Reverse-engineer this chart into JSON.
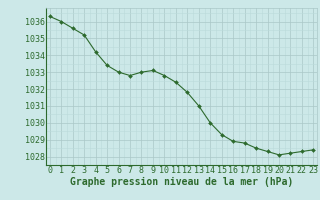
{
  "x": [
    0,
    1,
    2,
    3,
    4,
    5,
    6,
    7,
    8,
    9,
    10,
    11,
    12,
    13,
    14,
    15,
    16,
    17,
    18,
    19,
    20,
    21,
    22,
    23
  ],
  "y": [
    1036.3,
    1036.0,
    1035.6,
    1035.2,
    1034.2,
    1033.4,
    1033.0,
    1032.8,
    1033.0,
    1033.1,
    1032.8,
    1032.4,
    1031.8,
    1031.0,
    1030.0,
    1029.3,
    1028.9,
    1028.8,
    1028.5,
    1028.3,
    1028.1,
    1028.2,
    1028.3,
    1028.4
  ],
  "line_color": "#2d6a2d",
  "marker_color": "#2d6a2d",
  "bg_color": "#cce8e8",
  "grid_color_major": "#aac8c8",
  "grid_color_minor": "#bbdada",
  "xlabel": "Graphe pression niveau de la mer (hPa)",
  "xlabel_color": "#2d6a2d",
  "ylabel_ticks": [
    1028,
    1029,
    1030,
    1031,
    1032,
    1033,
    1034,
    1035,
    1036
  ],
  "ylim": [
    1027.5,
    1036.8
  ],
  "xlim": [
    -0.3,
    23.3
  ],
  "tick_color": "#2d6a2d",
  "label_fontsize": 7,
  "tick_fontsize": 6
}
